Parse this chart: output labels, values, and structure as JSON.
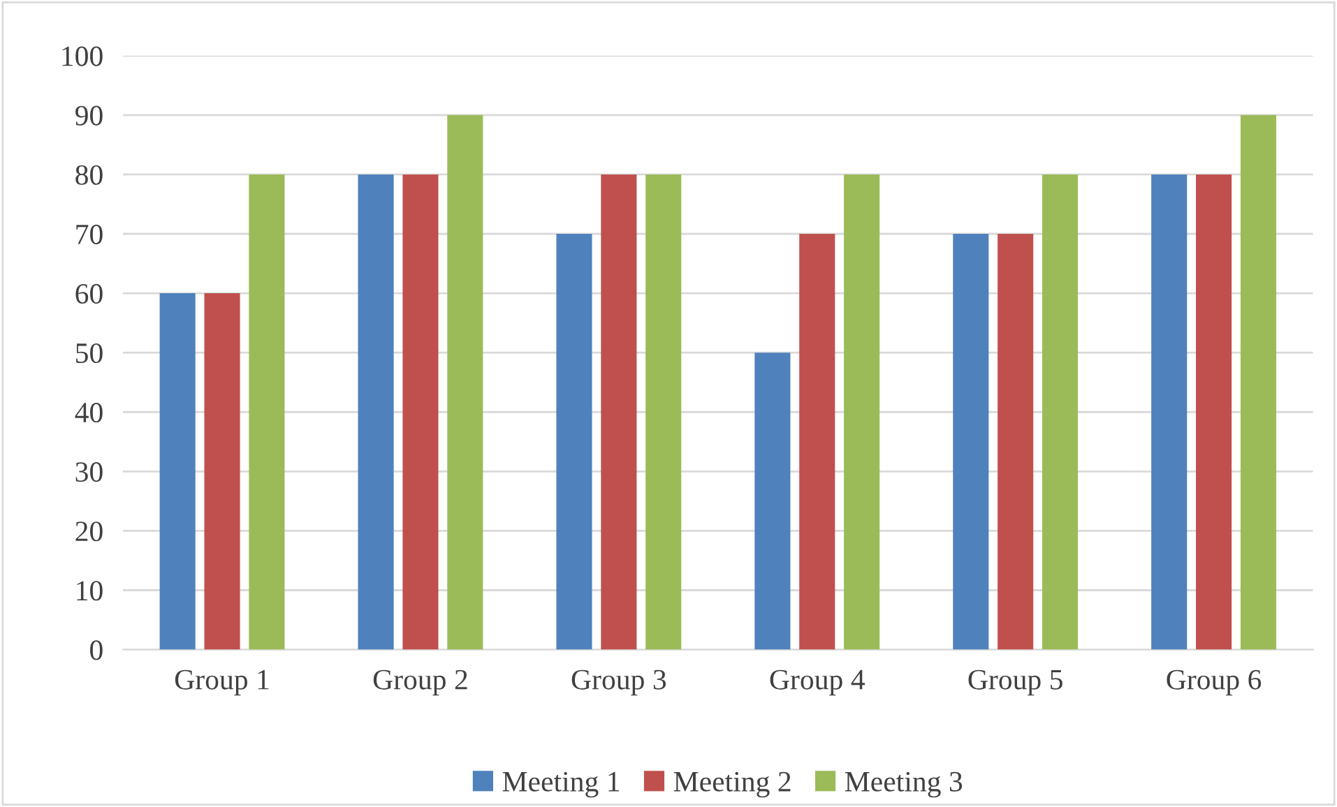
{
  "chart_data": {
    "type": "bar",
    "categories": [
      "Group 1",
      "Group 2",
      "Group 3",
      "Group 4",
      "Group 5",
      "Group 6"
    ],
    "series": [
      {
        "name": "Meeting 1",
        "color": "#4f81bd",
        "values": [
          60,
          80,
          70,
          50,
          70,
          80
        ]
      },
      {
        "name": "Meeting 2",
        "color": "#c0504d",
        "values": [
          60,
          80,
          80,
          70,
          70,
          80
        ]
      },
      {
        "name": "Meeting 3",
        "color": "#9bbb59",
        "values": [
          80,
          90,
          80,
          80,
          80,
          90
        ]
      }
    ],
    "ylim": [
      0,
      100
    ],
    "yticks": [
      0,
      10,
      20,
      30,
      40,
      50,
      60,
      70,
      80,
      90,
      100
    ],
    "grid": "y",
    "legend": "bottom"
  }
}
